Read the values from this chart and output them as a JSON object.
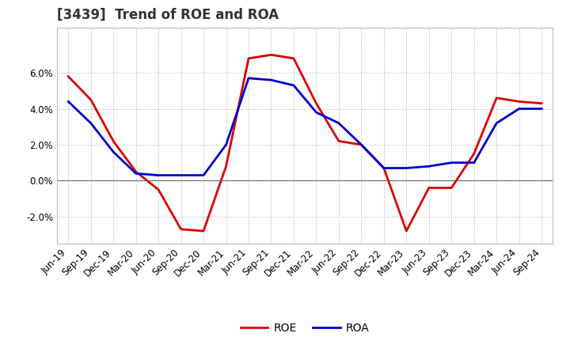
{
  "title": "[3439]  Trend of ROE and ROA",
  "labels": [
    "Jun-19",
    "Sep-19",
    "Dec-19",
    "Mar-20",
    "Jun-20",
    "Sep-20",
    "Dec-20",
    "Mar-21",
    "Jun-21",
    "Sep-21",
    "Dec-21",
    "Mar-22",
    "Jun-22",
    "Sep-22",
    "Dec-22",
    "Mar-23",
    "Jun-23",
    "Sep-23",
    "Dec-23",
    "Mar-24",
    "Jun-24",
    "Sep-24"
  ],
  "roe": [
    0.058,
    0.045,
    0.022,
    0.005,
    -0.005,
    -0.027,
    -0.028,
    0.008,
    0.068,
    0.07,
    0.068,
    0.043,
    0.022,
    0.02,
    0.007,
    -0.028,
    -0.004,
    -0.004,
    0.015,
    0.046,
    0.044,
    0.043
  ],
  "roa": [
    0.044,
    0.032,
    0.016,
    0.004,
    0.003,
    0.003,
    0.003,
    0.02,
    0.057,
    0.056,
    0.053,
    0.038,
    0.032,
    0.02,
    0.007,
    0.007,
    0.008,
    0.01,
    0.01,
    0.032,
    0.04,
    0.04
  ],
  "roe_color": "#dd0000",
  "roa_color": "#0000cc",
  "background_color": "#ffffff",
  "plot_bg_color": "#ffffff",
  "grid_color": "#aaaaaa",
  "ylim": [
    -0.035,
    0.085
  ],
  "yticks": [
    -0.02,
    0.0,
    0.02,
    0.04,
    0.06
  ],
  "legend_labels": [
    "ROE",
    "ROA"
  ],
  "title_fontsize": 12,
  "tick_fontsize": 8.5,
  "legend_fontsize": 10,
  "line_width": 2.0
}
